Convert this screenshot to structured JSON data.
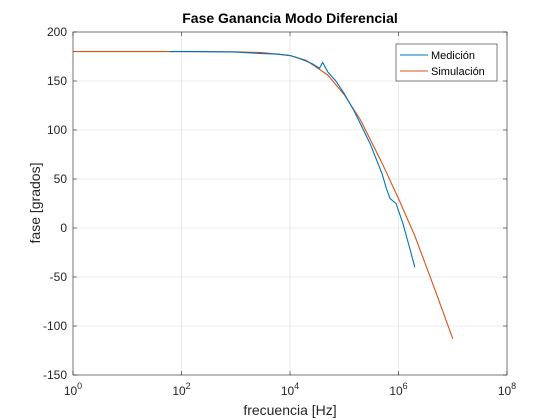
{
  "chart_data": {
    "type": "line",
    "title": "Fase Ganancia Modo Diferencial",
    "xlabel": "frecuencia [Hz]",
    "ylabel": "fase [grados]",
    "xscale": "log",
    "xlim": [
      1,
      100000000
    ],
    "ylim": [
      -150,
      200
    ],
    "xticks": [
      {
        "value": 1,
        "base": "10",
        "exp": "0"
      },
      {
        "value": 100,
        "base": "10",
        "exp": "2"
      },
      {
        "value": 10000,
        "base": "10",
        "exp": "4"
      },
      {
        "value": 1000000,
        "base": "10",
        "exp": "6"
      },
      {
        "value": 100000000,
        "base": "10",
        "exp": "8"
      }
    ],
    "yticks": [
      -150,
      -100,
      -50,
      0,
      50,
      100,
      150,
      200
    ],
    "grid": true,
    "legend_position": "top-right",
    "series": [
      {
        "name": "Medición",
        "color": "#0072BD",
        "x": [
          60,
          200,
          1000,
          3000,
          6000,
          10000,
          15000,
          25000,
          35000,
          40000,
          50000,
          70000,
          100000,
          150000,
          200000,
          300000,
          500000,
          600000,
          700000,
          900000,
          1200000,
          1600000,
          2000000
        ],
        "y": [
          180,
          180,
          179.5,
          178,
          177.5,
          176,
          173,
          168,
          163,
          169,
          159,
          150,
          137,
          120,
          106,
          86,
          55,
          40,
          30,
          25,
          5,
          -20,
          -40
        ]
      },
      {
        "name": "Simulación",
        "color": "#D95319",
        "x": [
          1,
          10,
          100,
          1000,
          3000,
          10000,
          20000,
          50000,
          100000,
          200000,
          500000,
          1000000,
          2000000,
          5000000,
          10000000
        ],
        "y": [
          180,
          180,
          180,
          179.8,
          179,
          176,
          171,
          156,
          136,
          110,
          66,
          30,
          -8,
          -67,
          -113
        ]
      }
    ]
  }
}
